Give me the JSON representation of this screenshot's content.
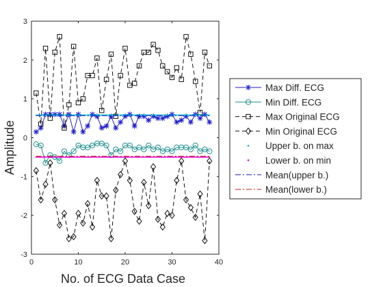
{
  "chart_data": {
    "type": "line",
    "xlabel": "No. of ECG Data Case",
    "ylabel": "Amplitude",
    "xlim": [
      0,
      40
    ],
    "ylim": [
      -3,
      3
    ],
    "x_ticks": [
      0,
      10,
      20,
      30,
      40
    ],
    "y_ticks": [
      -3,
      -2,
      -1,
      0,
      1,
      2,
      3
    ],
    "grid": false,
    "legend_placement": "outside-right",
    "x": [
      1,
      2,
      3,
      4,
      5,
      6,
      7,
      8,
      9,
      10,
      11,
      12,
      13,
      14,
      15,
      16,
      17,
      18,
      19,
      20,
      21,
      22,
      23,
      24,
      25,
      26,
      27,
      28,
      29,
      30,
      31,
      32,
      33,
      34,
      35,
      36,
      37,
      38
    ],
    "series": [
      {
        "name": "Max Diff. ECG",
        "style": "solid",
        "marker": "asterisk",
        "color": "#1f1fcc",
        "values": [
          0.15,
          0.25,
          0.6,
          0.6,
          0.6,
          0.6,
          0.3,
          0.6,
          0.15,
          0.6,
          0.15,
          0.3,
          0.6,
          0.55,
          0.25,
          0.3,
          0.55,
          0.25,
          0.4,
          0.55,
          0.6,
          0.3,
          0.55,
          0.55,
          0.45,
          0.55,
          0.5,
          0.5,
          0.55,
          0.6,
          0.4,
          0.45,
          0.55,
          0.4,
          0.6,
          0.5,
          0.6,
          0.4
        ]
      },
      {
        "name": "Min Diff. ECG",
        "style": "solid",
        "marker": "circle",
        "color": "#1f8f8f",
        "values": [
          -0.17,
          -0.2,
          -0.65,
          -0.45,
          -0.5,
          -0.6,
          -0.35,
          -0.45,
          -0.35,
          -0.2,
          -0.25,
          -0.25,
          -0.2,
          -0.15,
          -0.15,
          -0.2,
          -0.45,
          -0.3,
          -0.35,
          -0.2,
          -0.2,
          -0.3,
          -0.25,
          -0.3,
          -0.2,
          -0.3,
          -0.25,
          -0.35,
          -0.3,
          -0.35,
          -0.25,
          -0.25,
          -0.25,
          -0.3,
          -0.2,
          -0.35,
          -0.3,
          -0.35
        ]
      },
      {
        "name": "Max Original ECG",
        "style": "dashed",
        "marker": "square",
        "color": "#111111",
        "values": [
          1.15,
          0.35,
          2.3,
          0.5,
          2.2,
          2.6,
          0.25,
          0.85,
          2.35,
          0.9,
          1.0,
          1.6,
          1.6,
          2.05,
          0.7,
          1.5,
          2.15,
          0.55,
          1.6,
          2.3,
          1.35,
          1.4,
          1.85,
          2.2,
          2.2,
          2.4,
          2.25,
          1.85,
          1.7,
          1.55,
          1.8,
          1.5,
          2.6,
          2.15,
          1.45,
          0.65,
          2.2,
          1.85
        ]
      },
      {
        "name": "Min Original ECG",
        "style": "dashed",
        "marker": "diamond",
        "color": "#111111",
        "values": [
          -0.85,
          -1.6,
          -1.2,
          -0.65,
          -1.6,
          -2.25,
          -1.95,
          -2.6,
          -2.55,
          -1.95,
          -2.2,
          -1.7,
          -2.3,
          -1.1,
          -1.5,
          -1.5,
          -2.6,
          -1.35,
          -0.95,
          -0.6,
          -1.1,
          -1.9,
          -2.15,
          -1.15,
          -1.75,
          -0.75,
          -2.1,
          -2.3,
          -1.95,
          -2.0,
          -1.1,
          -0.6,
          -1.6,
          -1.8,
          -2.05,
          -1.45,
          -2.65,
          -0.6
        ]
      },
      {
        "name": "Upper b. on max",
        "style": "dots",
        "color": "#00cccc",
        "constant": 0.58
      },
      {
        "name": "Lower b. on min",
        "style": "dots",
        "color": "#e000e0",
        "constant": -0.5
      },
      {
        "name": "Mean(upper b.)",
        "style": "dashdot",
        "color": "#1f1fcc",
        "constant": 0.57
      },
      {
        "name": "Mean(lower b.)",
        "style": "dashdot",
        "color": "#cc1f1f",
        "constant": -0.48
      }
    ]
  }
}
